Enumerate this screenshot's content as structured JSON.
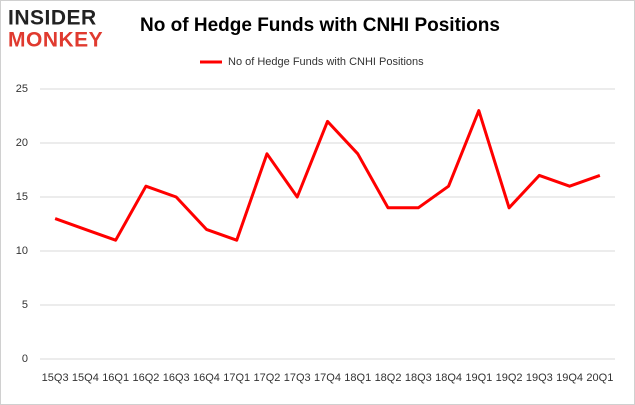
{
  "logo": {
    "line1": "INSIDER",
    "line2": "MONKEY"
  },
  "chart_data": {
    "type": "line",
    "title": "No of Hedge Funds with CNHI Positions",
    "categories": [
      "15Q3",
      "15Q4",
      "16Q1",
      "16Q2",
      "16Q3",
      "16Q4",
      "17Q1",
      "17Q2",
      "17Q3",
      "17Q4",
      "18Q1",
      "18Q2",
      "18Q3",
      "18Q4",
      "19Q1",
      "19Q2",
      "19Q3",
      "19Q4",
      "20Q1"
    ],
    "series": [
      {
        "name": "No of Hedge Funds with CNHI Positions",
        "color": "#ff0000",
        "values": [
          13,
          12,
          11,
          16,
          15,
          12,
          11,
          19,
          15,
          22,
          19,
          14,
          14,
          16,
          23,
          14,
          17,
          16,
          17
        ]
      }
    ],
    "ylim": [
      0,
      25
    ],
    "yticks": [
      0,
      5,
      10,
      15,
      20,
      25
    ],
    "grid": true,
    "legend": "top"
  }
}
